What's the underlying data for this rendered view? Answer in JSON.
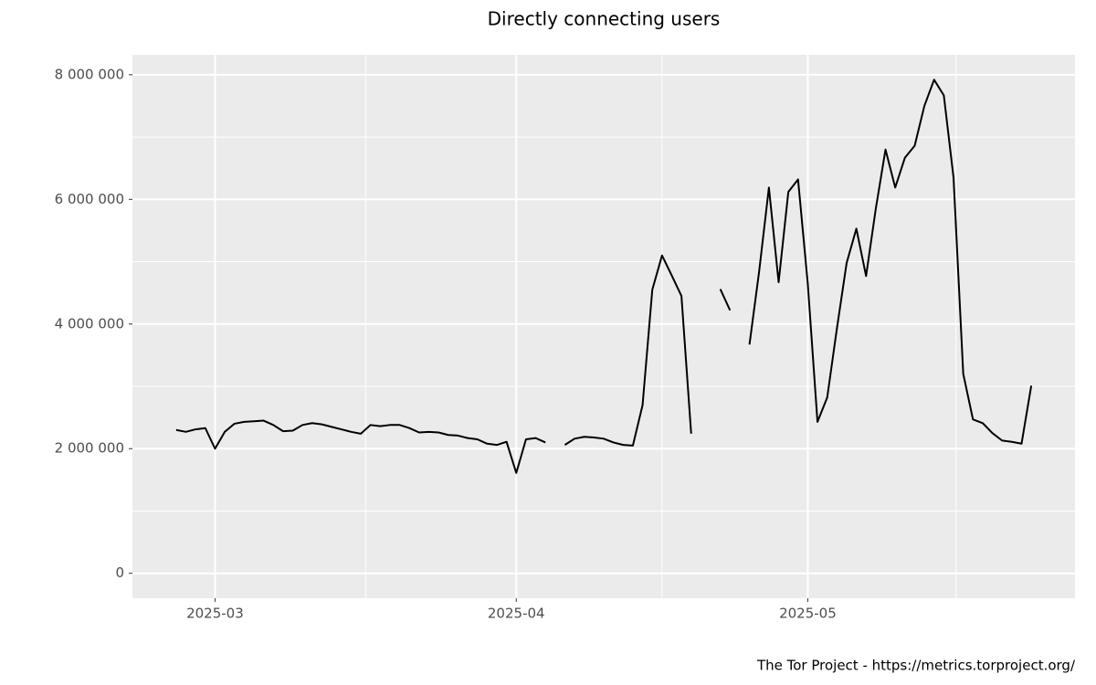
{
  "chart_data": {
    "type": "line",
    "title": "Directly connecting users",
    "caption": "The Tor Project - https://metrics.torproject.org/",
    "categories": [
      null,
      null,
      null,
      null,
      "2025-03",
      null,
      null,
      null,
      null,
      null,
      null,
      null,
      null,
      null,
      null,
      null,
      null,
      null,
      null,
      null,
      null,
      null,
      null,
      null,
      null,
      null,
      null,
      null,
      null,
      null,
      null,
      null,
      null,
      null,
      null,
      "2025-04",
      null,
      null,
      null,
      null,
      null,
      null,
      null,
      null,
      null,
      null,
      null,
      null,
      null,
      null,
      null,
      null,
      null,
      null,
      null,
      null,
      null,
      null,
      null,
      null,
      null,
      null,
      null,
      null,
      null,
      "2025-05",
      null,
      null,
      null,
      null,
      null,
      null,
      null,
      null,
      null,
      null,
      null,
      null,
      null,
      null,
      null,
      null,
      null,
      null,
      null,
      null,
      null,
      null,
      null
    ],
    "values": [
      2300000,
      2270000,
      2310000,
      2330000,
      2000000,
      2270000,
      2400000,
      2430000,
      2440000,
      2450000,
      2380000,
      2280000,
      2290000,
      2380000,
      2410000,
      2390000,
      2350000,
      2310000,
      2270000,
      2240000,
      2380000,
      2360000,
      2380000,
      2380000,
      2330000,
      2260000,
      2270000,
      2260000,
      2220000,
      2210000,
      2170000,
      2150000,
      2080000,
      2060000,
      2110000,
      1610000,
      2150000,
      2170000,
      2100000,
      null,
      2060000,
      2160000,
      2190000,
      2180000,
      2160000,
      2100000,
      2060000,
      2050000,
      2700000,
      4550000,
      5100000,
      4780000,
      4450000,
      2240000,
      null,
      null,
      4560000,
      4220000,
      null,
      3670000,
      4850000,
      6190000,
      4670000,
      6120000,
      6320000,
      4650000,
      2430000,
      2820000,
      3930000,
      4980000,
      5530000,
      4770000,
      5850000,
      6800000,
      6190000,
      6670000,
      6860000,
      7500000,
      7920000,
      7670000,
      6350000,
      3200000,
      2470000,
      2410000,
      2250000,
      2130000,
      2110000,
      2080000,
      3010000
    ],
    "color": "#000000",
    "ylim": [
      -400000,
      8320000
    ],
    "yticks": [
      {
        "value": 0,
        "label": "0"
      },
      {
        "value": 2000000,
        "label": "2 000 000"
      },
      {
        "value": 4000000,
        "label": "4 000 000"
      },
      {
        "value": 6000000,
        "label": "6 000 000"
      },
      {
        "value": 8000000,
        "label": "8 000 000"
      }
    ],
    "grid": true
  }
}
